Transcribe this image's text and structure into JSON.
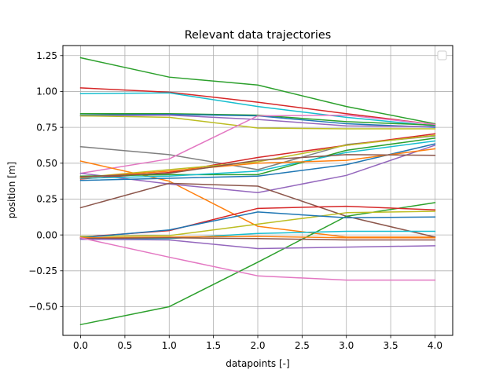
{
  "chart_data": {
    "type": "line",
    "title": "Relevant data trajectories",
    "xlabel": "datapoints [-]",
    "ylabel": "position [m]",
    "xlim": [
      -0.2,
      4.2
    ],
    "ylim": [
      -0.7,
      1.32
    ],
    "xticks": [
      "0.0",
      "0.5",
      "1.0",
      "1.5",
      "2.0",
      "2.5",
      "3.0",
      "3.5",
      "4.0"
    ],
    "xtick_values": [
      0,
      0.5,
      1,
      1.5,
      2,
      2.5,
      3,
      3.5,
      4
    ],
    "yticks": [
      "−0.50",
      "−0.25",
      "0.00",
      "0.25",
      "0.50",
      "0.75",
      "1.00",
      "1.25"
    ],
    "ytick_values": [
      -0.5,
      -0.25,
      0,
      0.25,
      0.5,
      0.75,
      1.0,
      1.25
    ],
    "grid": true,
    "legend": "top-right (empty)",
    "x": [
      0,
      1,
      2,
      3,
      4
    ],
    "series": [
      {
        "color": "#2ca02c",
        "values": [
          1.235,
          1.1,
          1.045,
          0.895,
          0.775
        ]
      },
      {
        "color": "#d62728",
        "values": [
          1.025,
          0.995,
          0.925,
          0.845,
          0.77
        ]
      },
      {
        "color": "#17becf",
        "values": [
          0.985,
          0.99,
          0.895,
          0.82,
          0.76
        ]
      },
      {
        "color": "#2ca02c",
        "values": [
          0.845,
          0.845,
          0.835,
          0.79,
          0.765
        ]
      },
      {
        "color": "#1f77b4",
        "values": [
          0.835,
          0.84,
          0.83,
          0.775,
          0.75
        ]
      },
      {
        "color": "#9467bd",
        "values": [
          0.83,
          0.835,
          0.805,
          0.76,
          0.755
        ]
      },
      {
        "color": "#bcbd22",
        "values": [
          0.83,
          0.82,
          0.745,
          0.74,
          0.74
        ]
      },
      {
        "color": "#7f7f7f",
        "values": [
          0.615,
          0.56,
          0.455,
          0.63,
          0.69
        ]
      },
      {
        "color": "#e377c2",
        "values": [
          0.43,
          0.53,
          0.83,
          0.835,
          0.77
        ]
      },
      {
        "color": "#ff7f0e",
        "values": [
          0.515,
          0.375,
          0.06,
          -0.015,
          -0.015
        ]
      },
      {
        "color": "#9467bd",
        "values": [
          0.43,
          0.355,
          0.295,
          0.415,
          0.625
        ]
      },
      {
        "color": "#d62728",
        "values": [
          0.39,
          0.435,
          0.54,
          0.625,
          0.705
        ]
      },
      {
        "color": "#bcbd22",
        "values": [
          0.4,
          0.455,
          0.51,
          0.625,
          0.695
        ]
      },
      {
        "color": "#2ca02c",
        "values": [
          0.41,
          0.42,
          0.42,
          0.59,
          0.675
        ]
      },
      {
        "color": "#17becf",
        "values": [
          0.395,
          0.41,
          0.445,
          0.575,
          0.655
        ]
      },
      {
        "color": "#1f77b4",
        "values": [
          0.38,
          0.395,
          0.41,
          0.49,
          0.635
        ]
      },
      {
        "color": "#ff7f0e",
        "values": [
          0.4,
          0.445,
          0.5,
          0.52,
          0.6
        ]
      },
      {
        "color": "#8c564b",
        "values": [
          0.405,
          0.43,
          0.52,
          0.56,
          0.555
        ]
      },
      {
        "color": "#8c564b",
        "values": [
          0.19,
          0.36,
          0.34,
          0.13,
          -0.015
        ]
      },
      {
        "color": "#2ca02c",
        "values": [
          -0.625,
          -0.5,
          -0.19,
          0.13,
          0.225
        ]
      },
      {
        "color": "#d62728",
        "values": [
          -0.015,
          0.03,
          0.185,
          0.2,
          0.175
        ]
      },
      {
        "color": "#bcbd22",
        "values": [
          -0.01,
          -0.005,
          0.075,
          0.155,
          0.165
        ]
      },
      {
        "color": "#1f77b4",
        "values": [
          -0.02,
          0.035,
          0.16,
          0.12,
          0.125
        ]
      },
      {
        "color": "#17becf",
        "values": [
          -0.03,
          -0.025,
          0.01,
          0.025,
          0.025
        ]
      },
      {
        "color": "#ff7f0e",
        "values": [
          -0.02,
          -0.015,
          -0.01,
          -0.02,
          -0.02
        ]
      },
      {
        "color": "#8c564b",
        "values": [
          -0.025,
          -0.02,
          -0.025,
          -0.035,
          -0.035
        ]
      },
      {
        "color": "#9467bd",
        "values": [
          -0.03,
          -0.035,
          -0.095,
          -0.085,
          -0.075
        ]
      },
      {
        "color": "#e377c2",
        "values": [
          -0.02,
          -0.155,
          -0.285,
          -0.315,
          -0.315
        ]
      }
    ]
  }
}
